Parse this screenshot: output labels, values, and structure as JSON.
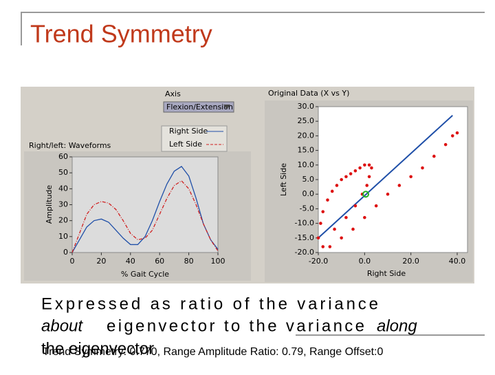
{
  "title": "Trend Symmetry",
  "body": {
    "line1": "Expressed as ratio of the variance",
    "line2a": "about",
    "line2b": "eigenvector to the variance",
    "line2c": "along",
    "line3": "the eigenvector",
    "result": "Trend Symmetry: 0.770, Range Amplitude Ratio: 0.79, Range Offset:0"
  },
  "controls": {
    "axis_label": "Axis",
    "axis_value": "Flexion/Extension"
  },
  "chart_data": [
    {
      "type": "line",
      "title": "Right/left: Waveforms",
      "x_label": "% Gait Cycle",
      "y_label": "Amplitude",
      "x": [
        0,
        5,
        10,
        15,
        20,
        25,
        30,
        35,
        40,
        45,
        50,
        55,
        60,
        65,
        70,
        75,
        80,
        85,
        90,
        95,
        100
      ],
      "series": [
        {
          "name": "Right Side",
          "color": "#1f4fa8",
          "dashed": false,
          "values": [
            0,
            8,
            16,
            20,
            21,
            19,
            14,
            9,
            5,
            5,
            10,
            20,
            32,
            43,
            51,
            54,
            48,
            34,
            18,
            8,
            2
          ]
        },
        {
          "name": "Left Side",
          "color": "#d02020",
          "dashed": true,
          "values": [
            0,
            12,
            24,
            30,
            32,
            31,
            27,
            20,
            12,
            8,
            9,
            14,
            24,
            34,
            42,
            45,
            40,
            30,
            18,
            8,
            1
          ]
        }
      ],
      "xlim": [
        0,
        100
      ],
      "xticks": [
        0,
        20,
        40,
        60,
        80,
        100
      ],
      "ylim": [
        0,
        60
      ],
      "yticks": [
        0,
        10,
        20,
        30,
        40,
        50,
        60
      ]
    },
    {
      "type": "scatter",
      "title": "Original Data (X vs Y)",
      "x_label": "Right Side",
      "y_label": "Left Side",
      "series": [
        {
          "color": "#dd1111",
          "x": [
            -20,
            -19,
            -18,
            -16,
            -14,
            -12,
            -10,
            -8,
            -6,
            -4,
            -2,
            0,
            2,
            3,
            2,
            1,
            -1,
            -4,
            -8,
            -13,
            -18,
            -15,
            -10,
            -5,
            0,
            5,
            10,
            15,
            20,
            25,
            30,
            35,
            38,
            40
          ],
          "values": [
            -15,
            -10,
            -6,
            -2,
            1,
            3,
            5,
            6,
            7,
            8,
            9,
            10,
            10,
            9,
            6,
            3,
            0,
            -4,
            -8,
            -12,
            -18,
            -18,
            -15,
            -12,
            -8,
            -4,
            0,
            3,
            6,
            9,
            13,
            17,
            20,
            21
          ]
        }
      ],
      "fit_line": {
        "color": "#1f4fa8",
        "x": [
          -20,
          38
        ],
        "values": [
          -15,
          27
        ]
      },
      "center": {
        "color": "#22b022",
        "x": 0.5,
        "value": 0
      },
      "xlim": [
        -20,
        40
      ],
      "xticks": [
        {
          "value": -20,
          "label": "-20.0"
        },
        {
          "value": 0,
          "label": "0.0"
        },
        {
          "value": 20,
          "label": "20.0"
        },
        {
          "value": 40,
          "label": "40.0"
        }
      ],
      "ylim": [
        -20,
        30
      ],
      "yticks": [
        {
          "value": -20,
          "label": "-20.0"
        },
        {
          "value": -15,
          "label": "-15.0"
        },
        {
          "value": -10,
          "label": "-10.0"
        },
        {
          "value": -5,
          "label": "-5.0"
        },
        {
          "value": 0,
          "label": "0.0"
        },
        {
          "value": 5,
          "label": "5.0"
        },
        {
          "value": 10,
          "label": "10.0"
        },
        {
          "value": 15,
          "label": "15.0"
        },
        {
          "value": 20,
          "label": "20.0"
        },
        {
          "value": 25,
          "label": "25.0"
        },
        {
          "value": 30,
          "label": "30.0"
        }
      ]
    }
  ]
}
